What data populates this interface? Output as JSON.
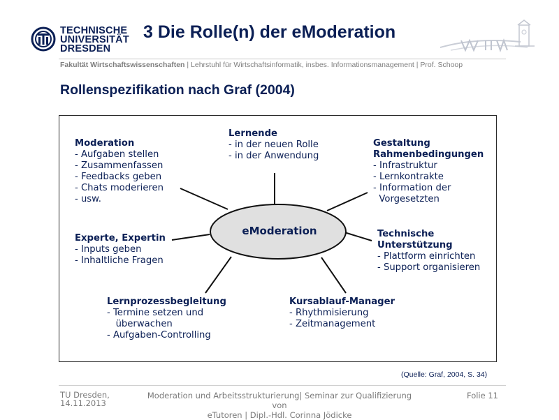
{
  "header": {
    "logo_lines": [
      "TECHNISCHE",
      "UNIVERSITÄT",
      "DRESDEN"
    ],
    "title": "3 Die Rolle(n) der eModeration",
    "faculty_bold": "Fakultät Wirtschaftswissenschaften",
    "faculty_rest": " | Lehrstuhl für Wirtschaftsinformatik, insbes. Informationsmanagement | Prof. Schoop"
  },
  "subtitle": "Rollenspezifikation nach Graf (2004)",
  "diagram": {
    "center": "eModeration",
    "moderation": {
      "heading": "Moderation",
      "items": [
        "- Aufgaben stellen",
        "- Zusammenfassen",
        "- Feedbacks geben",
        "- Chats moderieren",
        "- usw."
      ]
    },
    "lernende": {
      "heading": "Lernende",
      "items": [
        "- in der neuen Rolle",
        "- in der Anwendung"
      ]
    },
    "gestaltung": {
      "heading": [
        "Gestaltung",
        "Rahmenbedingungen"
      ],
      "items": [
        "- Infrastruktur",
        "- Lernkontrakte",
        "- Information der",
        "  Vorgesetzten"
      ]
    },
    "experte": {
      "heading": "Experte, Expertin",
      "items": [
        "- Inputs geben",
        "- Inhaltliche Fragen"
      ]
    },
    "technische": {
      "heading": [
        "Technische",
        "Unterstützung"
      ],
      "items": [
        "- Plattform einrichten",
        "- Support organisieren"
      ]
    },
    "lernprozess": {
      "heading": "Lernprozessbegleitung",
      "items": [
        "- Termine setzen und",
        "   überwachen",
        "- Aufgaben-Controlling"
      ]
    },
    "kursablauf": {
      "heading": "Kursablauf-Manager",
      "items": [
        "- Rhythmisierung",
        "- Zeitmanagement"
      ]
    }
  },
  "source": "(Quelle: Graf, 2004, S. 34)",
  "footer": {
    "left_line1": "TU Dresden,",
    "left_line2": "14.11.2013",
    "mid_line1": "Moderation und Arbeitsstrukturierung| Seminar zur Qualifizierung von",
    "mid_line2": "eTutoren | Dipl.-Hdl. Corinna Jödicke",
    "right": "Folie 11"
  }
}
